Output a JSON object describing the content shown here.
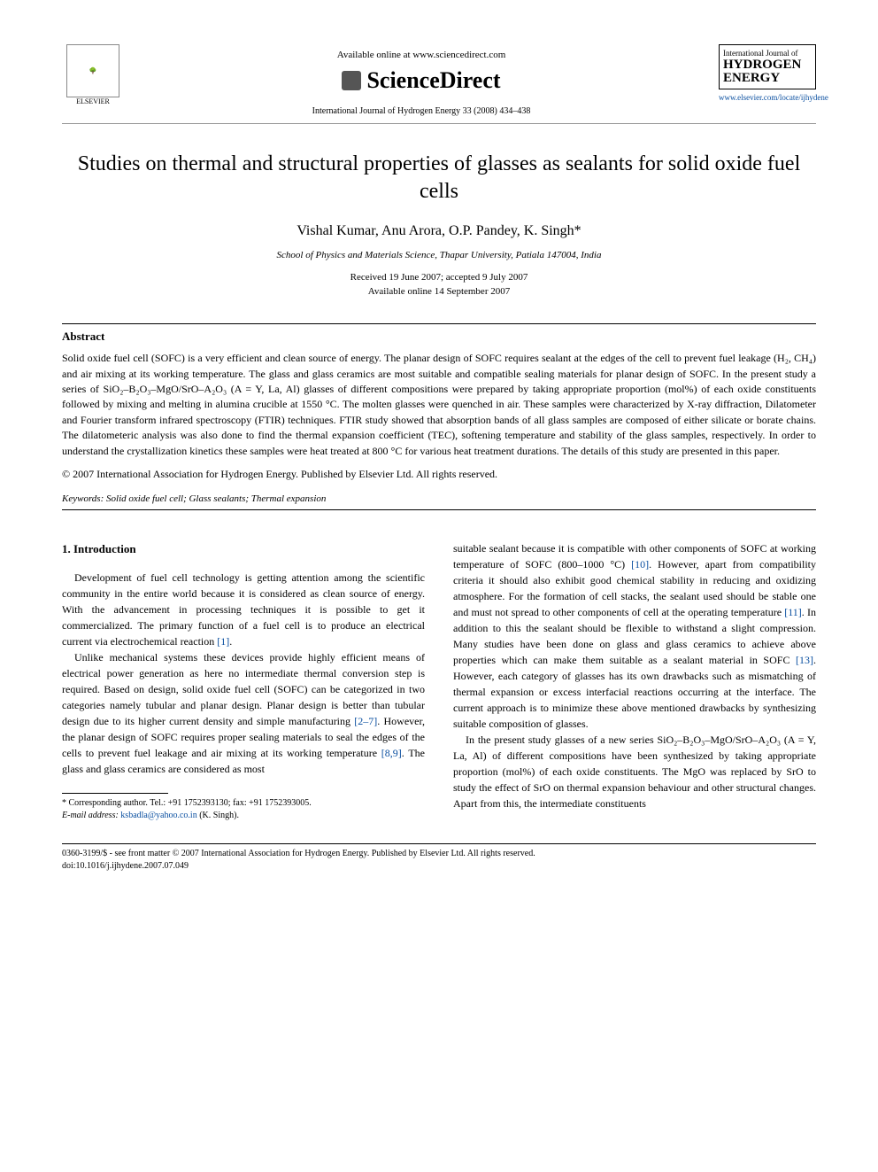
{
  "header": {
    "publisher_name": "ELSEVIER",
    "available_text": "Available online at www.sciencedirect.com",
    "platform_name": "ScienceDirect",
    "journal_ref": "International Journal of Hydrogen Energy 33 (2008) 434–438",
    "journal_box_top": "International Journal of",
    "journal_box_line1": "HYDROGEN",
    "journal_box_line2": "ENERGY",
    "journal_url": "www.elsevier.com/locate/ijhydene"
  },
  "article": {
    "title": "Studies on thermal and structural properties of glasses as sealants for solid oxide fuel cells",
    "authors": "Vishal Kumar, Anu Arora, O.P. Pandey, K. Singh*",
    "affiliation": "School of Physics and Materials Science, Thapar University, Patiala 147004, India",
    "received": "Received 19 June 2007; accepted 9 July 2007",
    "available": "Available online 14 September 2007"
  },
  "abstract": {
    "heading": "Abstract",
    "body": "Solid oxide fuel cell (SOFC) is a very efficient and clean source of energy. The planar design of SOFC requires sealant at the edges of the cell to prevent fuel leakage (H₂, CH₄) and air mixing at its working temperature. The glass and glass ceramics are most suitable and compatible sealing materials for planar design of SOFC. In the present study a series of SiO₂–B₂O₃–MgO/SrO–A₂O₃ (A = Y, La, Al) glasses of different compositions were prepared by taking appropriate proportion (mol%) of each oxide constituents followed by mixing and melting in alumina crucible at 1550 °C. The molten glasses were quenched in air. These samples were characterized by X-ray diffraction, Dilatometer and Fourier transform infrared spectroscopy (FTIR) techniques. FTIR study showed that absorption bands of all glass samples are composed of either silicate or borate chains. The dilatometeric analysis was also done to find the thermal expansion coefficient (TEC), softening temperature and stability of the glass samples, respectively. In order to understand the crystallization kinetics these samples were heat treated at 800 °C for various heat treatment durations. The details of this study are presented in this paper.",
    "copyright": "© 2007 International Association for Hydrogen Energy. Published by Elsevier Ltd. All rights reserved."
  },
  "keywords": {
    "label": "Keywords:",
    "text": " Solid oxide fuel cell; Glass sealants; Thermal expansion"
  },
  "body": {
    "section_heading": "1. Introduction",
    "left_p1": "Development of fuel cell technology is getting attention among the scientific community in the entire world because it is considered as clean source of energy. With the advancement in processing techniques it is possible to get it commercialized. The primary function of a fuel cell is to produce an electrical current via electrochemical reaction ",
    "cite1": "[1]",
    "left_p1_end": ".",
    "left_p2a": "Unlike mechanical systems these devices provide highly efficient means of electrical power generation as here no intermediate thermal conversion step is required. Based on design, solid oxide fuel cell (SOFC) can be categorized in two categories namely tubular and planar design. Planar design is better than tubular design due to its higher current density and simple manufacturing ",
    "cite2": "[2–7]",
    "left_p2b": ". However, the planar design of SOFC requires proper sealing materials to seal the edges of the cells to prevent fuel leakage and air mixing at its working temperature ",
    "cite3": "[8,9]",
    "left_p2c": ". The glass and glass ceramics are considered as most",
    "right_p1a": "suitable sealant because it is compatible with other components of SOFC at working temperature of SOFC (800–1000 °C) ",
    "cite4": "[10]",
    "right_p1b": ". However, apart from compatibility criteria it should also exhibit good chemical stability in reducing and oxidizing atmosphere. For the formation of cell stacks, the sealant used should be stable one and must not spread to other components of cell at the operating temperature ",
    "cite5": "[11]",
    "right_p1c": ". In addition to this the sealant should be flexible to withstand a slight compression. Many studies have been done on glass and glass ceramics to achieve above properties which can make them suitable as a sealant material in SOFC ",
    "cite6": "[13]",
    "right_p1d": ". However, each category of glasses has its own drawbacks such as mismatching of thermal expansion or excess interfacial reactions occurring at the interface. The current approach is to minimize these above mentioned drawbacks by synthesizing suitable composition of glasses.",
    "right_p2": "In the present study glasses of a new series SiO₂–B₂O₃–MgO/SrO–A₂O₃ (A = Y, La, Al) of different compositions have been synthesized by taking appropriate proportion (mol%) of each oxide constituents. The MgO was replaced by SrO to study the effect of SrO on thermal expansion behaviour and other structural changes. Apart from this, the intermediate constituents"
  },
  "footnote": {
    "corresponding": "* Corresponding author. Tel.: +91 1752393130; fax: +91 1752393005.",
    "email_label": "E-mail address: ",
    "email": "ksbadla@yahoo.co.in",
    "email_suffix": " (K. Singh)."
  },
  "footer": {
    "line1": "0360-3199/$ - see front matter © 2007 International Association for Hydrogen Energy. Published by Elsevier Ltd. All rights reserved.",
    "line2": "doi:10.1016/j.ijhydene.2007.07.049"
  }
}
